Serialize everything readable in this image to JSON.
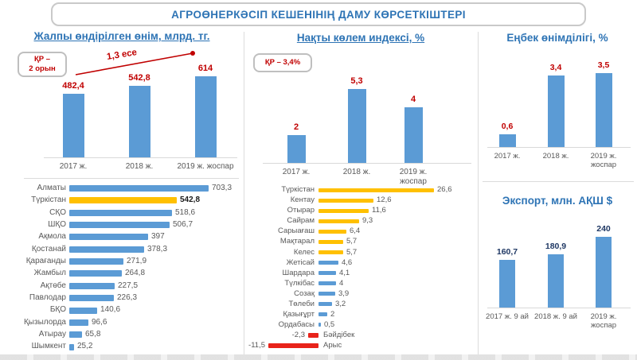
{
  "title": "АГРОӨНЕРКӘСІП КЕШЕНІНІҢ ДАМУ КӨРСЕТКІШТЕРІ",
  "badges": {
    "gross": {
      "line1": "ҚР –",
      "line2": "2 орын"
    },
    "index": {
      "text": "ҚР – 3,4%"
    }
  },
  "colors": {
    "accent_blue": "#2E74B5",
    "bar_blue": "#5B9BD5",
    "bar_yellow": "#FFC000",
    "bar_red": "#E8231A",
    "value_red": "#C00000",
    "value_navy": "#1F3864",
    "text_gray": "#595959",
    "axis_gray": "#D9D9D9"
  },
  "chart_data": [
    {
      "id": "gross_output",
      "type": "bar",
      "title": "Жалпы өндірілген өнім, млрд. тг.",
      "annotation": "1,3 есе",
      "badge": "ҚР – 2 орын",
      "categories": [
        "2017 ж.",
        "2018 ж.",
        "2019 ж. жоспар"
      ],
      "values": [
        482.4,
        542.8,
        614
      ],
      "labels": [
        "482,4",
        "542,8",
        "614"
      ],
      "ylim": [
        0,
        650
      ],
      "grid": false,
      "value_label_color": "#C00000"
    },
    {
      "id": "regions_gross_output",
      "type": "bar-horizontal",
      "title": "",
      "categories": [
        "Алматы",
        "Түркістан",
        "СҚО",
        "ШҚО",
        "Ақмола",
        "Қостанай",
        "Қарағанды",
        "Жамбыл",
        "Ақтөбе",
        "Павлодар",
        "БҚО",
        "Қызылорда",
        "Атырау",
        "Шымкент"
      ],
      "values": [
        703.3,
        542.8,
        518.6,
        506.7,
        397,
        378.3,
        271.9,
        264.8,
        227.5,
        226.3,
        140.6,
        96.6,
        65.8,
        25.2
      ],
      "labels": [
        "703,3",
        "542,8",
        "518,6",
        "506,7",
        "397",
        "378,3",
        "271,9",
        "264,8",
        "227,5",
        "226,3",
        "140,6",
        "96,6",
        "65,8",
        "25,2"
      ],
      "highlight_index": 1,
      "xlim": [
        0,
        750
      ],
      "grid": false
    },
    {
      "id": "volume_index",
      "type": "bar",
      "title": "Нақты көлем индексі, %",
      "badge": "ҚР – 3,4%",
      "categories": [
        "2017 ж.",
        "2018 ж.",
        "2019 ж. жоспар"
      ],
      "values": [
        2,
        5.3,
        4
      ],
      "labels": [
        "2",
        "5,3",
        "4"
      ],
      "ylim": [
        0,
        6
      ],
      "grid": false,
      "value_label_color": "#C00000"
    },
    {
      "id": "districts_volume_index",
      "type": "bar-horizontal",
      "title": "",
      "categories": [
        "Түркістан",
        "Кентау",
        "Отырар",
        "Сайрам",
        "Сарыағаш",
        "Мақтарал",
        "Келес",
        "Жетісай",
        "Шардара",
        "Түлкібас",
        "Созақ",
        "Төлеби",
        "Қазығұрт",
        "Ордабасы",
        "Бәйдібек",
        "Арыс"
      ],
      "values": [
        26.6,
        12.6,
        11.6,
        9.3,
        6.4,
        5.7,
        5.7,
        4.6,
        4.1,
        4,
        3.9,
        3.2,
        2,
        0.5,
        -2.3,
        -11.5
      ],
      "labels": [
        "26,6",
        "12,6",
        "11,6",
        "9,3",
        "6,4",
        "5,7",
        "5,7",
        "4,6",
        "4,1",
        "4",
        "3,9",
        "3,2",
        "2",
        "0,5",
        "-2,3",
        "-11,5"
      ],
      "bar_colors": [
        "yellow",
        "yellow",
        "yellow",
        "yellow",
        "yellow",
        "yellow",
        "yellow",
        "blue",
        "blue",
        "blue",
        "blue",
        "blue",
        "blue",
        "blue",
        "red",
        "red"
      ],
      "xlim": [
        -13,
        28
      ],
      "grid": false
    },
    {
      "id": "labor_productivity",
      "type": "bar",
      "title": "Еңбек өнімділігі, %",
      "categories": [
        "2017 ж.",
        "2018 ж.",
        "2019 ж. жоспар"
      ],
      "values": [
        0.6,
        3.4,
        3.5
      ],
      "labels": [
        "0,6",
        "3,4",
        "3,5"
      ],
      "ylim": [
        0,
        4
      ],
      "grid": false,
      "value_label_color": "#C00000"
    },
    {
      "id": "export",
      "type": "bar",
      "title": "Экспорт, млн. АҚШ $",
      "categories": [
        "2017 ж. 9 ай",
        "2018 ж. 9 ай",
        "2019 ж. жоспар"
      ],
      "values": [
        160.7,
        180.9,
        240
      ],
      "labels": [
        "160,7",
        "180,9",
        "240"
      ],
      "ylim": [
        0,
        260
      ],
      "grid": false,
      "value_label_color": "#1F3864"
    }
  ]
}
